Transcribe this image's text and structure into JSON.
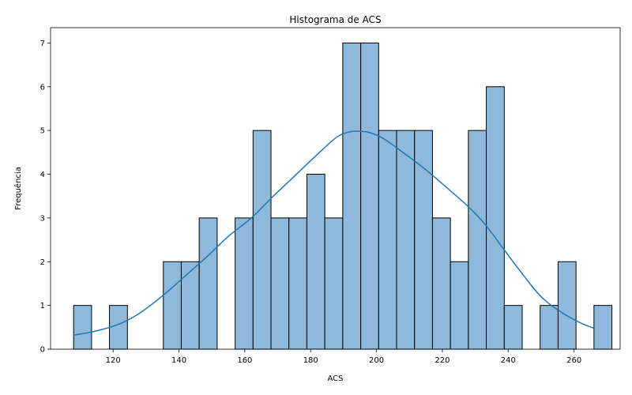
{
  "chart_data": {
    "type": "bar",
    "title": "Histograma de ACS",
    "xlabel": "ACS",
    "ylabel": "Frequência",
    "xlim": [
      101,
      274
    ],
    "ylim": [
      0,
      7.35
    ],
    "xticks": [
      120,
      140,
      160,
      180,
      200,
      220,
      240,
      260
    ],
    "yticks": [
      0,
      1,
      2,
      3,
      4,
      5,
      6,
      7
    ],
    "bin_start": 108.0,
    "bin_width": 5.45,
    "counts": [
      1,
      0,
      1,
      0,
      0,
      2,
      2,
      3,
      0,
      3,
      5,
      3,
      3,
      4,
      3,
      7,
      7,
      5,
      5,
      5,
      3,
      2,
      5,
      6,
      1,
      0,
      1,
      2,
      0,
      1
    ],
    "kde": {
      "x": [
        108,
        115,
        122,
        128,
        135,
        142,
        149,
        155,
        162,
        168,
        175,
        182,
        188,
        192,
        195,
        198,
        202,
        208,
        215,
        222,
        228,
        233,
        238,
        244,
        250,
        256,
        262,
        266
      ],
      "y": [
        0.32,
        0.42,
        0.58,
        0.82,
        1.22,
        1.68,
        2.15,
        2.58,
        3.0,
        3.45,
        3.95,
        4.45,
        4.85,
        4.97,
        4.98,
        4.95,
        4.82,
        4.5,
        4.1,
        3.65,
        3.25,
        2.85,
        2.35,
        1.75,
        1.2,
        0.85,
        0.6,
        0.48
      ]
    },
    "colors": {
      "bar_fill": "#8fb9db",
      "bar_edge": "#000000",
      "kde_line": "#1f77b4"
    },
    "grid": false,
    "legend": "none"
  }
}
